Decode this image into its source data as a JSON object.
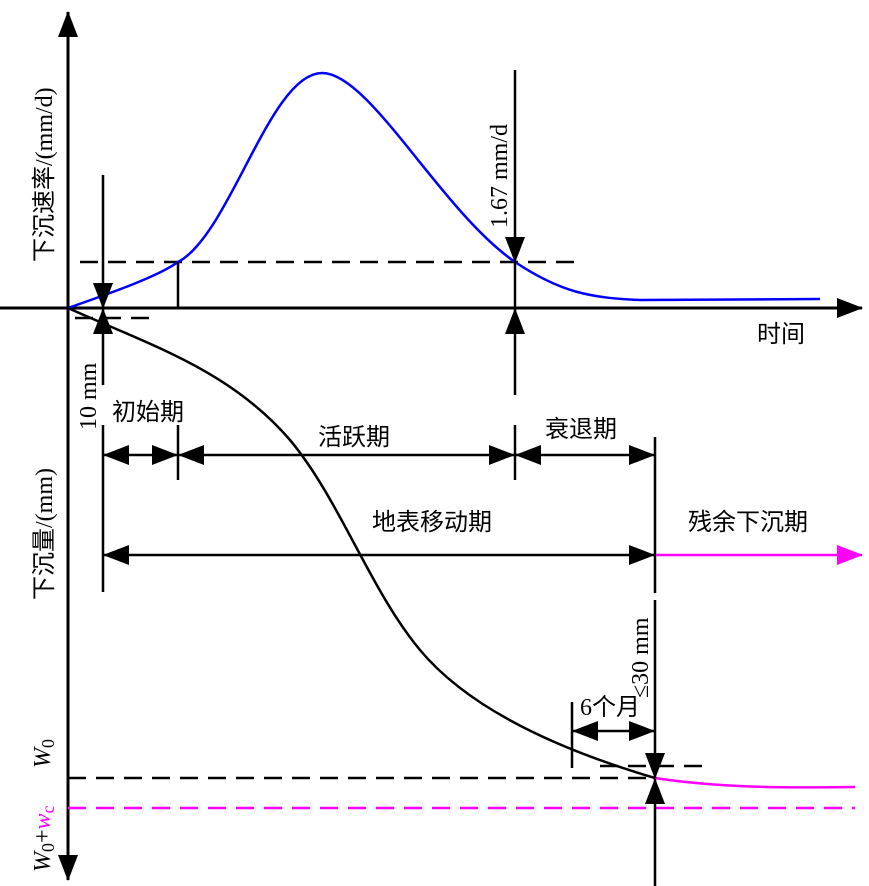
{
  "labels": {
    "rate_axis": "下沉速率/(mm/d)",
    "time_axis": "时间",
    "subsidence_axis": "下沉量/(mm)",
    "threshold_10mm": "10 mm",
    "threshold_rate": "1.67 mm/d",
    "initial_phase": "初始期",
    "active_phase": "活跃期",
    "decline_phase": "衰退期",
    "movement_period": "地表移动期",
    "residual_period": "残余下沉期",
    "residual_limit": "≤30 mm",
    "six_months": "6个月",
    "w0_base": "W",
    "w0_sub": "0",
    "w0wc_plus": "+",
    "w0wc_w": "w",
    "w0wc_sub": "c"
  },
  "colors": {
    "rate_curve": "#0000ff",
    "subsidence_curve": "#000000",
    "residual": "#ff00ff"
  }
}
